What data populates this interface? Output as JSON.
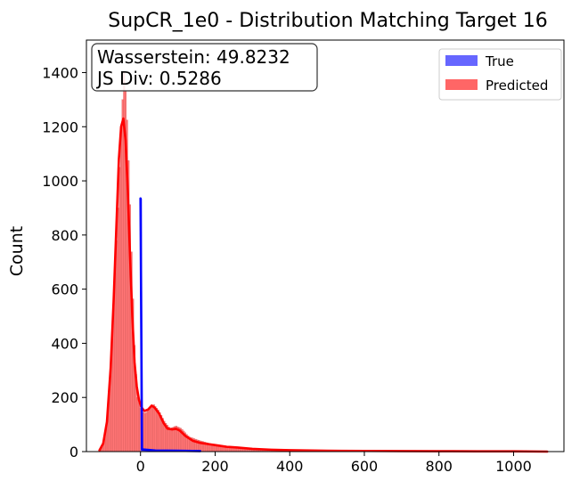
{
  "chart_data": {
    "type": "bar",
    "title": "SupCR_1e0 - Distribution Matching Target 16",
    "xlabel": "",
    "ylabel": "Count",
    "xlim": [
      -145,
      1135
    ],
    "ylim": [
      0,
      1520
    ],
    "xticks": [
      0,
      200,
      400,
      600,
      800,
      1000
    ],
    "yticks": [
      0,
      200,
      400,
      600,
      800,
      1000,
      1200,
      1400
    ],
    "grid": false,
    "legend_position": "top-right",
    "annotation": {
      "lines": [
        "Wasserstein: 49.8232",
        "JS Div: 0.5286"
      ]
    },
    "series": [
      {
        "name": "True",
        "color": "#0000ff",
        "bar_color": "#6666ff",
        "bins": [
          {
            "x0": 0,
            "x1": 4,
            "count": 935
          },
          {
            "x0": 4,
            "x1": 160,
            "count": 4
          }
        ],
        "kde": [
          [
            0,
            935
          ],
          [
            4,
            8
          ],
          [
            40,
            4
          ],
          [
            100,
            3
          ],
          [
            160,
            2
          ]
        ]
      },
      {
        "name": "Predicted",
        "color": "#ff0000",
        "bar_color": "#ff6666",
        "bin_width": 4,
        "hist_profile": [
          [
            -110,
            5
          ],
          [
            -100,
            25
          ],
          [
            -90,
            100
          ],
          [
            -80,
            300
          ],
          [
            -70,
            600
          ],
          [
            -60,
            900
          ],
          [
            -52,
            1200
          ],
          [
            -44,
            1400
          ],
          [
            -38,
            1300
          ],
          [
            -30,
            1000
          ],
          [
            -22,
            650
          ],
          [
            -15,
            350
          ],
          [
            -8,
            200
          ],
          [
            0,
            160
          ],
          [
            10,
            140
          ],
          [
            20,
            150
          ],
          [
            35,
            175
          ],
          [
            50,
            150
          ],
          [
            65,
            110
          ],
          [
            80,
            85
          ],
          [
            95,
            95
          ],
          [
            110,
            85
          ],
          [
            130,
            55
          ],
          [
            160,
            40
          ],
          [
            200,
            25
          ],
          [
            250,
            18
          ],
          [
            300,
            10
          ],
          [
            400,
            5
          ],
          [
            600,
            3
          ],
          [
            800,
            2
          ],
          [
            1000,
            1
          ],
          [
            1090,
            0
          ]
        ],
        "kde": [
          [
            -110,
            5
          ],
          [
            -100,
            30
          ],
          [
            -90,
            110
          ],
          [
            -80,
            310
          ],
          [
            -72,
            560
          ],
          [
            -65,
            820
          ],
          [
            -58,
            1080
          ],
          [
            -52,
            1200
          ],
          [
            -46,
            1230
          ],
          [
            -40,
            1150
          ],
          [
            -34,
            960
          ],
          [
            -28,
            720
          ],
          [
            -22,
            500
          ],
          [
            -16,
            330
          ],
          [
            -10,
            240
          ],
          [
            -4,
            190
          ],
          [
            2,
            165
          ],
          [
            10,
            150
          ],
          [
            20,
            155
          ],
          [
            30,
            170
          ],
          [
            38,
            162
          ],
          [
            50,
            140
          ],
          [
            62,
            105
          ],
          [
            72,
            85
          ],
          [
            85,
            82
          ],
          [
            95,
            84
          ],
          [
            105,
            78
          ],
          [
            120,
            58
          ],
          [
            140,
            40
          ],
          [
            160,
            32
          ],
          [
            180,
            28
          ],
          [
            200,
            24
          ],
          [
            230,
            18
          ],
          [
            260,
            15
          ],
          [
            300,
            10
          ],
          [
            350,
            7
          ],
          [
            400,
            5
          ],
          [
            500,
            3
          ],
          [
            600,
            2.5
          ],
          [
            700,
            2
          ],
          [
            800,
            1.5
          ],
          [
            900,
            1
          ],
          [
            1000,
            1
          ],
          [
            1090,
            0
          ]
        ]
      }
    ]
  }
}
